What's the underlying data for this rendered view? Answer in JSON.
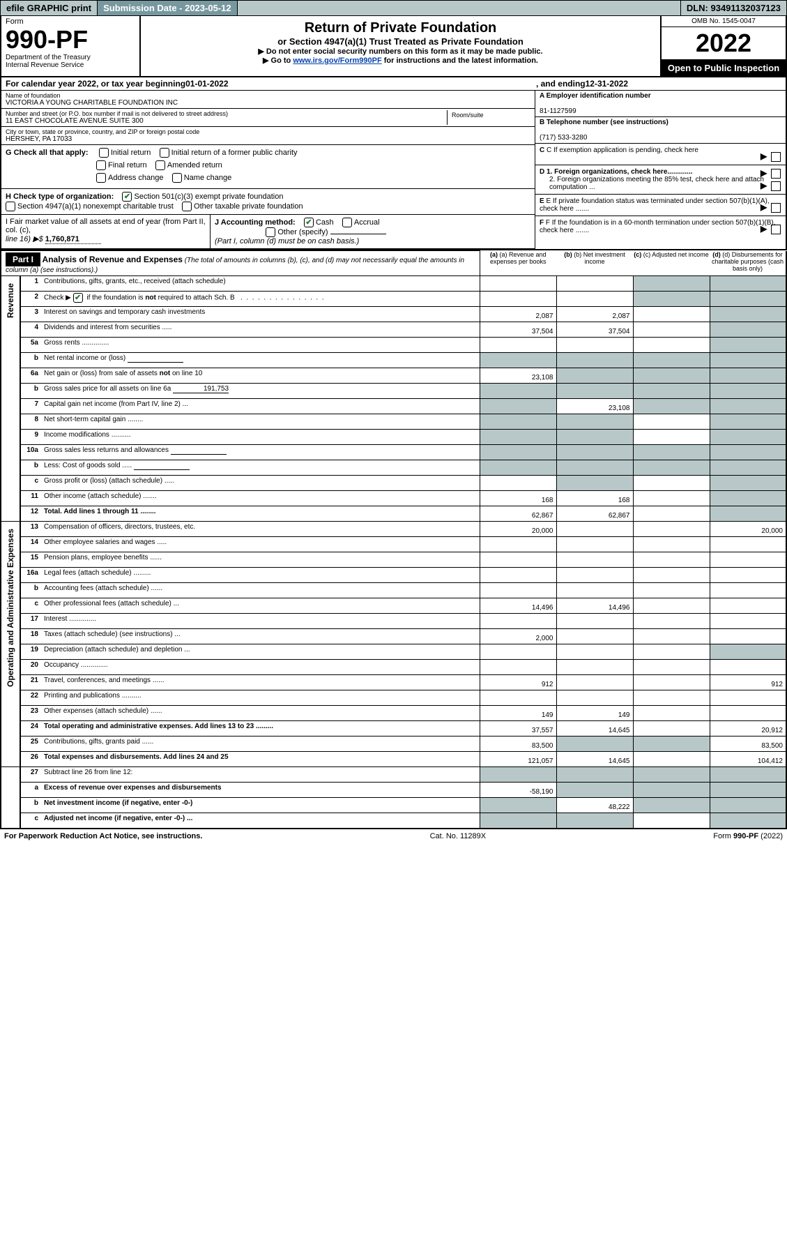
{
  "topbar": {
    "efile": "efile GRAPHIC print",
    "sub_label": "Submission Date - 2023-05-12",
    "dln": "DLN: 93491132037123"
  },
  "header": {
    "form": "Form",
    "form_num": "990-PF",
    "dept": "Department of the Treasury",
    "irs": "Internal Revenue Service",
    "title": "Return of Private Foundation",
    "subtitle": "or Section 4947(a)(1) Trust Treated as Private Foundation",
    "arrow1": "▶ Do not enter social security numbers on this form as it may be made public.",
    "arrow2_pre": "▶ Go to ",
    "arrow2_link": "www.irs.gov/Form990PF",
    "arrow2_post": " for instructions and the latest information.",
    "omb": "OMB No. 1545-0047",
    "year": "2022",
    "open_public": "Open to Public Inspection"
  },
  "calendar": {
    "pre": "For calendar year 2022, or tax year beginning ",
    "begin": "01-01-2022",
    "mid": ", and ending ",
    "end": "12-31-2022"
  },
  "foundation": {
    "name_label": "Name of foundation",
    "name": "VICTORIA A YOUNG CHARITABLE FOUNDATION INC",
    "addr_label": "Number and street (or P.O. box number if mail is not delivered to street address)",
    "addr": "11 EAST CHOCOLATE AVENUE SUITE 300",
    "room_label": "Room/suite",
    "city_label": "City or town, state or province, country, and ZIP or foreign postal code",
    "city": "HERSHEY, PA  17033"
  },
  "employer": {
    "a_label": "A Employer identification number",
    "ein": "81-1127599",
    "b_label": "B Telephone number (see instructions)",
    "phone": "(717) 533-3280",
    "c_label": "C If exemption application is pending, check here",
    "d1": "D 1. Foreign organizations, check here.............",
    "d2": "2. Foreign organizations meeting the 85% test, check here and attach computation ...",
    "e": "E If private foundation status was terminated under section 507(b)(1)(A), check here .......",
    "f": "F If the foundation is in a 60-month termination under section 507(b)(1)(B), check here .......",
    "arrow": "▶"
  },
  "g_check": {
    "label": "G Check all that apply:",
    "initial": "Initial return",
    "initial_public": "Initial return of a former public charity",
    "final": "Final return",
    "amended": "Amended return",
    "addr_change": "Address change",
    "name_change": "Name change"
  },
  "h_check": {
    "label": "H Check type of organization:",
    "opt1": "Section 501(c)(3) exempt private foundation",
    "opt2": "Section 4947(a)(1) nonexempt charitable trust",
    "opt3": "Other taxable private foundation"
  },
  "i_check": {
    "label": "I Fair market value of all assets at end of year (from Part II, col. (c), ",
    "line16": "line 16) ▶$ ",
    "value": "1,760,871"
  },
  "j_check": {
    "label": "J Accounting method:",
    "cash": "Cash",
    "accrual": "Accrual",
    "other": "Other (specify)",
    "note": "(Part I, column (d) must be on cash basis.)"
  },
  "part1": {
    "bar": "Part I",
    "title": "Analysis of Revenue and Expenses",
    "subtitle": " (The total of amounts in columns (b), (c), and (d) may not necessarily equal the amounts in column (a) (see instructions).)",
    "col_a": "(a) Revenue and expenses per books",
    "col_b": "(b) Net investment income",
    "col_c": "(c) Adjusted net income",
    "col_d": "(d) Disbursements for charitable purposes (cash basis only)"
  },
  "side_labels": {
    "revenue": "Revenue",
    "expenses": "Operating and Administrative Expenses"
  },
  "rows": [
    {
      "n": "1",
      "desc": "Contributions, gifts, grants, etc., received (attach schedule)",
      "a": "",
      "b": "",
      "c": "",
      "d": "",
      "shade_c": true,
      "shade_d": true,
      "sec": "rev"
    },
    {
      "n": "2",
      "desc": "Check ▶ ☑ if the foundation is not required to attach Sch. B  ...............",
      "a": "",
      "b": "",
      "c": "",
      "d": "",
      "shade_c": true,
      "shade_d": true,
      "sec": "rev",
      "nobold_check": true
    },
    {
      "n": "3",
      "desc": "Interest on savings and temporary cash investments",
      "a": "2,087",
      "b": "2,087",
      "c": "",
      "d": "",
      "shade_d": true,
      "sec": "rev"
    },
    {
      "n": "4",
      "desc": "Dividends and interest from securities  .....",
      "a": "37,504",
      "b": "37,504",
      "c": "",
      "d": "",
      "shade_d": true,
      "sec": "rev"
    },
    {
      "n": "5a",
      "desc": "Gross rents  ..............",
      "a": "",
      "b": "",
      "c": "",
      "d": "",
      "shade_d": true,
      "sec": "rev"
    },
    {
      "n": "b",
      "desc": "Net rental income or (loss)",
      "a": "",
      "b": "",
      "c": "",
      "d": "",
      "shade_a": true,
      "shade_b": true,
      "shade_c": true,
      "shade_d": true,
      "sec": "rev",
      "sub": true
    },
    {
      "n": "6a",
      "desc": "Net gain or (loss) from sale of assets not on line 10",
      "a": "23,108",
      "b": "",
      "c": "",
      "d": "",
      "shade_b": true,
      "shade_c": true,
      "shade_d": true,
      "sec": "rev"
    },
    {
      "n": "b",
      "desc": "Gross sales price for all assets on line 6a",
      "a": "",
      "b": "",
      "c": "",
      "d": "",
      "shade_a": true,
      "shade_b": true,
      "shade_c": true,
      "shade_d": true,
      "sec": "rev",
      "sub": true,
      "sub_val": "191,753"
    },
    {
      "n": "7",
      "desc": "Capital gain net income (from Part IV, line 2)  ...",
      "a": "",
      "b": "23,108",
      "c": "",
      "d": "",
      "shade_a": true,
      "shade_c": true,
      "shade_d": true,
      "sec": "rev"
    },
    {
      "n": "8",
      "desc": "Net short-term capital gain  ........",
      "a": "",
      "b": "",
      "c": "",
      "d": "",
      "shade_a": true,
      "shade_b": true,
      "shade_d": true,
      "sec": "rev"
    },
    {
      "n": "9",
      "desc": "Income modifications  ..........",
      "a": "",
      "b": "",
      "c": "",
      "d": "",
      "shade_a": true,
      "shade_b": true,
      "shade_d": true,
      "sec": "rev"
    },
    {
      "n": "10a",
      "desc": "Gross sales less returns and allowances",
      "a": "",
      "b": "",
      "c": "",
      "d": "",
      "shade_a": true,
      "shade_b": true,
      "shade_c": true,
      "shade_d": true,
      "sec": "rev",
      "sub": true
    },
    {
      "n": "b",
      "desc": "Less: Cost of goods sold  .....",
      "a": "",
      "b": "",
      "c": "",
      "d": "",
      "shade_a": true,
      "shade_b": true,
      "shade_c": true,
      "shade_d": true,
      "sec": "rev",
      "sub": true
    },
    {
      "n": "c",
      "desc": "Gross profit or (loss) (attach schedule)  .....",
      "a": "",
      "b": "",
      "c": "",
      "d": "",
      "shade_b": true,
      "shade_d": true,
      "sec": "rev"
    },
    {
      "n": "11",
      "desc": "Other income (attach schedule)  .......",
      "a": "168",
      "b": "168",
      "c": "",
      "d": "",
      "shade_d": true,
      "sec": "rev"
    },
    {
      "n": "12",
      "desc": "Total. Add lines 1 through 11  ........",
      "a": "62,867",
      "b": "62,867",
      "c": "",
      "d": "",
      "shade_d": true,
      "sec": "rev",
      "bold": true
    },
    {
      "n": "13",
      "desc": "Compensation of officers, directors, trustees, etc.",
      "a": "20,000",
      "b": "",
      "c": "",
      "d": "20,000",
      "sec": "exp"
    },
    {
      "n": "14",
      "desc": "Other employee salaries and wages  .....",
      "a": "",
      "b": "",
      "c": "",
      "d": "",
      "sec": "exp"
    },
    {
      "n": "15",
      "desc": "Pension plans, employee benefits  ......",
      "a": "",
      "b": "",
      "c": "",
      "d": "",
      "sec": "exp"
    },
    {
      "n": "16a",
      "desc": "Legal fees (attach schedule)  .........",
      "a": "",
      "b": "",
      "c": "",
      "d": "",
      "sec": "exp"
    },
    {
      "n": "b",
      "desc": "Accounting fees (attach schedule)  ......",
      "a": "",
      "b": "",
      "c": "",
      "d": "",
      "sec": "exp"
    },
    {
      "n": "c",
      "desc": "Other professional fees (attach schedule)  ...",
      "a": "14,496",
      "b": "14,496",
      "c": "",
      "d": "",
      "sec": "exp"
    },
    {
      "n": "17",
      "desc": "Interest  ..............",
      "a": "",
      "b": "",
      "c": "",
      "d": "",
      "sec": "exp"
    },
    {
      "n": "18",
      "desc": "Taxes (attach schedule) (see instructions)  ...",
      "a": "2,000",
      "b": "",
      "c": "",
      "d": "",
      "sec": "exp"
    },
    {
      "n": "19",
      "desc": "Depreciation (attach schedule) and depletion  ...",
      "a": "",
      "b": "",
      "c": "",
      "d": "",
      "shade_d": true,
      "sec": "exp"
    },
    {
      "n": "20",
      "desc": "Occupancy  ..............",
      "a": "",
      "b": "",
      "c": "",
      "d": "",
      "sec": "exp"
    },
    {
      "n": "21",
      "desc": "Travel, conferences, and meetings  ......",
      "a": "912",
      "b": "",
      "c": "",
      "d": "912",
      "sec": "exp"
    },
    {
      "n": "22",
      "desc": "Printing and publications  ..........",
      "a": "",
      "b": "",
      "c": "",
      "d": "",
      "sec": "exp"
    },
    {
      "n": "23",
      "desc": "Other expenses (attach schedule)  ......",
      "a": "149",
      "b": "149",
      "c": "",
      "d": "",
      "sec": "exp"
    },
    {
      "n": "24",
      "desc": "Total operating and administrative expenses. Add lines 13 to 23  .........",
      "a": "37,557",
      "b": "14,645",
      "c": "",
      "d": "20,912",
      "sec": "exp",
      "bold": true
    },
    {
      "n": "25",
      "desc": "Contributions, gifts, grants paid  ......",
      "a": "83,500",
      "b": "",
      "c": "",
      "d": "83,500",
      "shade_b": true,
      "shade_c": true,
      "sec": "exp"
    },
    {
      "n": "26",
      "desc": "Total expenses and disbursements. Add lines 24 and 25",
      "a": "121,057",
      "b": "14,645",
      "c": "",
      "d": "104,412",
      "sec": "exp",
      "bold": true
    },
    {
      "n": "27",
      "desc": "Subtract line 26 from line 12:",
      "a": "",
      "b": "",
      "c": "",
      "d": "",
      "shade_a": true,
      "shade_b": true,
      "shade_c": true,
      "shade_d": true,
      "sec": "bot"
    },
    {
      "n": "a",
      "desc": "Excess of revenue over expenses and disbursements",
      "a": "-58,190",
      "b": "",
      "c": "",
      "d": "",
      "shade_b": true,
      "shade_c": true,
      "shade_d": true,
      "sec": "bot",
      "bold": true
    },
    {
      "n": "b",
      "desc": "Net investment income (if negative, enter -0-)",
      "a": "",
      "b": "48,222",
      "c": "",
      "d": "",
      "shade_a": true,
      "shade_c": true,
      "shade_d": true,
      "sec": "bot",
      "bold": true
    },
    {
      "n": "c",
      "desc": "Adjusted net income (if negative, enter -0-)  ...",
      "a": "",
      "b": "",
      "c": "",
      "d": "",
      "shade_a": true,
      "shade_b": true,
      "shade_d": true,
      "sec": "bot",
      "bold": true
    }
  ],
  "footer": {
    "left": "For Paperwork Reduction Act Notice, see instructions.",
    "mid": "Cat. No. 11289X",
    "right": "Form 990-PF (2022)"
  },
  "colors": {
    "shade": "#b8c8c8",
    "link": "#0645ad"
  }
}
